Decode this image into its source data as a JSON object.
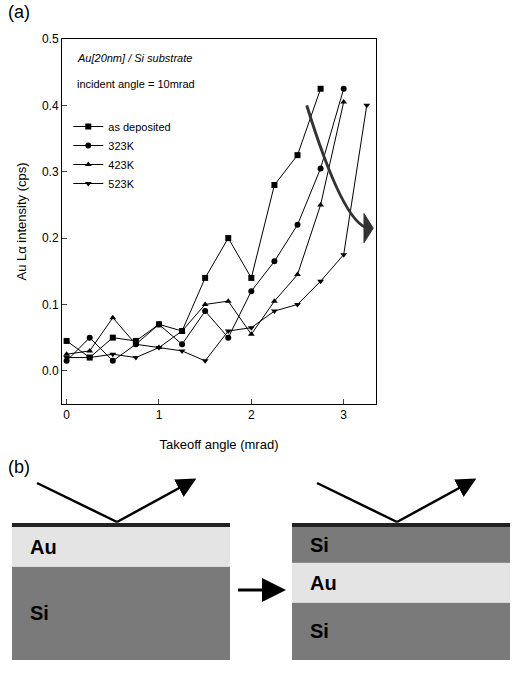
{
  "chart_data": {
    "type": "line",
    "label": "(a)",
    "annotations": [
      "Au[20nm] / Si substrate",
      "incident angle = 10mrad"
    ],
    "x_label": "Takeoff angle (mrad)",
    "y_label": "Au Lα intensity (cps)",
    "xlim": [
      -0.05,
      3.35
    ],
    "xticks": [
      0,
      1,
      2,
      3
    ],
    "ylim": [
      -0.05,
      0.5
    ],
    "yticks": [
      {
        "value": 0,
        "label": "0.0"
      },
      0.1,
      0.2,
      0.3,
      0.4,
      0.5
    ],
    "grid": false,
    "legend": "upper left",
    "series": [
      {
        "name": "as deposited",
        "color": "#000000",
        "marker": "square",
        "x": [
          0,
          0.25,
          0.5,
          0.75,
          1.0,
          1.25,
          1.5,
          1.75,
          2.0,
          2.25,
          2.5,
          2.75
        ],
        "values": [
          0.045,
          0.02,
          0.05,
          0.045,
          0.07,
          0.06,
          0.14,
          0.2,
          0.14,
          0.28,
          0.325,
          0.425
        ]
      },
      {
        "name": "323K",
        "color": "#000000",
        "marker": "circle",
        "x": [
          0,
          0.25,
          0.5,
          0.75,
          1.0,
          1.25,
          1.5,
          1.75,
          2.0,
          2.25,
          2.5,
          2.75,
          3.0
        ],
        "values": [
          0.015,
          0.05,
          0.015,
          0.04,
          0.07,
          0.04,
          0.09,
          0.05,
          0.12,
          0.165,
          0.22,
          0.305,
          0.425
        ]
      },
      {
        "name": "423K",
        "color": "#000000",
        "marker": "triangle-up",
        "x": [
          0,
          0.25,
          0.5,
          0.75,
          1.0,
          1.25,
          1.5,
          1.75,
          2.0,
          2.25,
          2.5,
          2.75,
          3.0
        ],
        "values": [
          0.025,
          0.03,
          0.08,
          0.04,
          0.035,
          0.06,
          0.1,
          0.105,
          0.055,
          0.105,
          0.145,
          0.25,
          0.405
        ]
      },
      {
        "name": "523K",
        "color": "#000000",
        "marker": "triangle-down",
        "x": [
          0,
          0.25,
          0.5,
          0.75,
          1.0,
          1.25,
          1.5,
          1.75,
          2.0,
          2.25,
          2.5,
          2.75,
          3.0,
          3.25
        ],
        "values": [
          0.02,
          0.02,
          0.025,
          0.02,
          0.035,
          0.03,
          0.015,
          0.06,
          0.065,
          0.09,
          0.1,
          0.135,
          0.175,
          0.4
        ]
      }
    ]
  },
  "diagram": {
    "label": "(b)",
    "before": {
      "layers": [
        "Au",
        "Si"
      ]
    },
    "after": {
      "layers": [
        "Si",
        "Au",
        "Si"
      ]
    }
  }
}
